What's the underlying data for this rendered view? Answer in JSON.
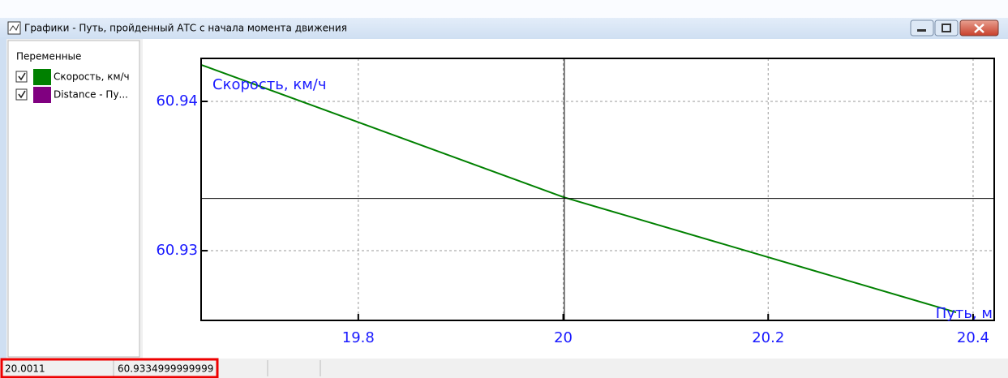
{
  "window": {
    "title": "Графики - Путь, пройденный АТС с начала момента движения"
  },
  "panel": {
    "title": "Переменные",
    "items": [
      {
        "name": "Скорость, км/ч",
        "color": "#008000",
        "checked": true
      },
      {
        "name": "Distance - Пу...",
        "color": "#800080",
        "checked": true
      }
    ]
  },
  "chart_data": {
    "type": "line",
    "ylabel": "Скорость, км/ч",
    "xlabel": "Путь, м",
    "x": [
      19.6466,
      20,
      20.3834
    ],
    "series": [
      {
        "name": "Скорость, км/ч",
        "color": "#008000",
        "values": [
          60.94245,
          60.93359,
          60.92587
        ]
      }
    ],
    "xlim": [
      19.6466,
      20.4206
    ],
    "ylim": [
      60.92533,
      60.94288
    ],
    "xticks": [
      19.8,
      20,
      20.2,
      20.4
    ],
    "yticks": [
      60.93,
      60.94
    ],
    "grid": true,
    "crosshair": {
      "x": 20.0011,
      "y": 60.9334999999999
    }
  }
}
